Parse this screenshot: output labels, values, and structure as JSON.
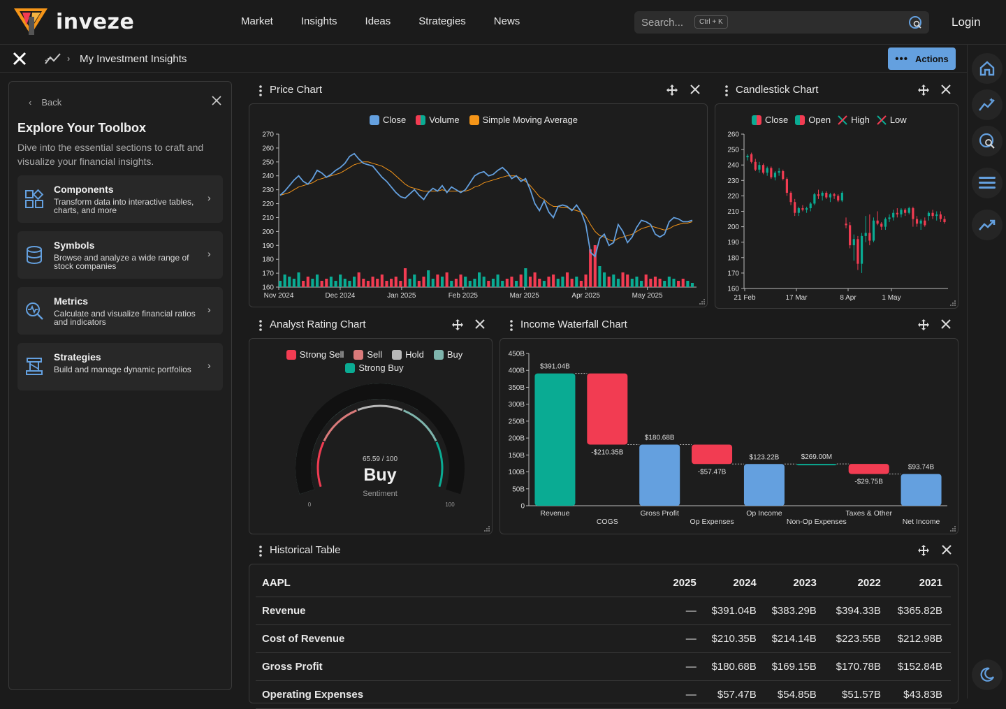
{
  "brand": {
    "name": "inveze"
  },
  "nav": [
    "Market",
    "Insights",
    "Ideas",
    "Strategies",
    "News"
  ],
  "search": {
    "placeholder": "Search...",
    "shortcut": "Ctrl + K"
  },
  "login_label": "Login",
  "breadcrumb": {
    "page": "My Investment Insights"
  },
  "actions_label": "Actions",
  "toolbox": {
    "back_label": "Back",
    "title": "Explore Your Toolbox",
    "description": "Dive into the essential sections to craft and visualize your financial insights.",
    "items": [
      {
        "title": "Components",
        "desc": "Transform data into interactive tables, charts, and more",
        "icon": "components-icon"
      },
      {
        "title": "Symbols",
        "desc": "Browse and analyze a wide range of stock companies",
        "icon": "database-icon"
      },
      {
        "title": "Metrics",
        "desc": "Calculate and visualize financial ratios and indicators",
        "icon": "metrics-search-icon"
      },
      {
        "title": "Strategies",
        "desc": "Build and manage dynamic portfolios",
        "icon": "strategy-icon"
      }
    ]
  },
  "colors": {
    "accent": "#64a0df",
    "up": "#0aab93",
    "down": "#f23c52",
    "sma": "#f59518",
    "teal_gauge": "#7fb5ad"
  },
  "price_chart": {
    "title": "Price Chart",
    "legend": [
      "Close",
      "Volume",
      "Simple Moving Average"
    ]
  },
  "candle_chart": {
    "title": "Candlestick Chart",
    "legend": [
      "Close",
      "Open",
      "High",
      "Low"
    ]
  },
  "rating_chart": {
    "title": "Analyst Rating Chart",
    "legend": [
      "Strong Sell",
      "Sell",
      "Hold",
      "Buy",
      "Strong Buy"
    ],
    "score_text": "65.59 / 100",
    "rating": "Buy",
    "caption": "Sentiment",
    "min_label": "0",
    "max_label": "100"
  },
  "waterfall": {
    "title": "Income Waterfall Chart"
  },
  "hist_table": {
    "title": "Historical Table",
    "headers": [
      "AAPL",
      "2025",
      "2024",
      "2023",
      "2022",
      "2021"
    ],
    "rows": [
      [
        "Revenue",
        "—",
        "$391.04B",
        "$383.29B",
        "$394.33B",
        "$365.82B"
      ],
      [
        "Cost of Revenue",
        "—",
        "$210.35B",
        "$214.14B",
        "$223.55B",
        "$212.98B"
      ],
      [
        "Gross Profit",
        "—",
        "$180.68B",
        "$169.15B",
        "$170.78B",
        "$152.84B"
      ],
      [
        "Operating Expenses",
        "—",
        "$57.47B",
        "$54.85B",
        "$51.57B",
        "$43.83B"
      ]
    ]
  },
  "chart_data": [
    {
      "type": "line",
      "ylim": [
        160,
        270
      ],
      "yticks": [
        270,
        260,
        250,
        240,
        230,
        220,
        210,
        200,
        190,
        180,
        170,
        160
      ],
      "xticks": [
        "Nov 2024",
        "Dec 2024",
        "Jan 2025",
        "Feb 2025",
        "Mar 2025",
        "Apr 2025",
        "May 2025"
      ],
      "series": [
        {
          "name": "Close",
          "values": [
            226,
            229,
            233,
            237,
            240,
            236,
            234,
            238,
            244,
            242,
            239,
            241,
            244,
            246,
            249,
            254,
            256,
            252,
            249,
            248,
            247,
            243,
            239,
            236,
            232,
            228,
            225,
            224,
            227,
            230,
            226,
            223,
            228,
            231,
            229,
            233,
            228,
            232,
            230,
            228,
            230,
            235,
            240,
            242,
            243,
            240,
            241,
            244,
            246,
            243,
            238,
            240,
            236,
            238,
            230,
            220,
            215,
            222,
            214,
            210,
            218,
            219,
            218,
            215,
            219,
            214,
            205,
            185,
            182,
            195,
            198,
            190,
            192,
            205,
            200,
            192,
            196,
            203,
            208,
            207,
            205,
            198,
            196,
            198,
            207,
            210,
            209,
            207,
            207,
            208
          ]
        },
        {
          "name": "Simple Moving Average",
          "values": [
            226,
            227,
            228,
            230,
            232,
            233,
            234,
            235,
            237,
            238,
            239,
            240,
            241,
            242,
            244,
            246,
            248,
            249,
            250,
            250,
            249,
            248,
            247,
            245,
            243,
            240,
            237,
            234,
            232,
            231,
            230,
            229,
            229,
            229,
            229,
            230,
            229,
            229,
            229,
            229,
            229,
            230,
            232,
            233,
            235,
            236,
            237,
            238,
            239,
            240,
            240,
            240,
            238,
            236,
            233,
            229,
            225,
            223,
            220,
            218,
            218,
            217,
            217,
            216,
            215,
            214,
            211,
            205,
            200,
            197,
            196,
            194,
            193,
            195,
            196,
            197,
            198,
            200,
            202,
            203,
            204,
            203,
            202,
            201,
            202,
            204,
            205,
            206,
            206,
            207
          ]
        },
        {
          "name": "Volume",
          "values": [
            0.3,
            0.6,
            0.5,
            0.4,
            0.7,
            0.3,
            0.5,
            0.4,
            0.6,
            0.3,
            0.4,
            0.5,
            0.3,
            0.6,
            0.4,
            0.3,
            0.5,
            0.7,
            0.4,
            0.3,
            0.5,
            0.4,
            0.6,
            0.3,
            0.4,
            0.5,
            0.3,
            0.9,
            0.4,
            0.6,
            0.3,
            0.5,
            0.8,
            0.4,
            0.6,
            0.5,
            0.7,
            0.3,
            0.4,
            0.6,
            0.5,
            0.3,
            0.4,
            0.7,
            0.5,
            0.3,
            0.4,
            0.6,
            0.3,
            0.4,
            0.5,
            0.3,
            0.6,
            0.9,
            0.5,
            0.7,
            0.4,
            0.3,
            0.5,
            0.6,
            0.4,
            0.5,
            0.7,
            0.4,
            0.5,
            0.3,
            0.6,
            1.8,
            2.0,
            1.0,
            0.7,
            0.5,
            0.6,
            0.4,
            0.7,
            0.6,
            0.4,
            0.5,
            0.3,
            0.6,
            0.4,
            0.5,
            0.4,
            0.3,
            0.5,
            0.4,
            0.3,
            0.4,
            0.3,
            0.2
          ]
        }
      ]
    },
    {
      "type": "candlestick",
      "ylim": [
        160,
        260
      ],
      "yticks": [
        260,
        250,
        240,
        230,
        220,
        210,
        200,
        190,
        180,
        170,
        160
      ],
      "xticks": [
        "21 Feb",
        "17 Mar",
        "8 Apr",
        "1 May"
      ],
      "ohlc": [
        [
          245,
          247,
          243,
          246
        ],
        [
          247,
          248,
          241,
          242
        ],
        [
          242,
          244,
          236,
          237
        ],
        [
          237,
          242,
          235,
          240
        ],
        [
          240,
          241,
          234,
          235
        ],
        [
          235,
          239,
          233,
          238
        ],
        [
          238,
          239,
          231,
          232
        ],
        [
          232,
          236,
          230,
          235
        ],
        [
          235,
          238,
          233,
          236
        ],
        [
          236,
          237,
          230,
          231
        ],
        [
          231,
          232,
          220,
          222
        ],
        [
          222,
          223,
          214,
          216
        ],
        [
          216,
          218,
          207,
          209
        ],
        [
          209,
          213,
          207,
          212
        ],
        [
          212,
          214,
          210,
          211
        ],
        [
          211,
          213,
          209,
          212
        ],
        [
          212,
          216,
          210,
          215
        ],
        [
          215,
          222,
          214,
          221
        ],
        [
          221,
          224,
          218,
          220
        ],
        [
          220,
          223,
          217,
          222
        ],
        [
          222,
          223,
          218,
          219
        ],
        [
          219,
          222,
          216,
          221
        ],
        [
          221,
          222,
          218,
          220
        ],
        [
          220,
          221,
          216,
          217
        ],
        [
          217,
          223,
          216,
          222
        ],
        [
          202,
          206,
          199,
          201
        ],
        [
          201,
          203,
          186,
          188
        ],
        [
          188,
          195,
          178,
          192
        ],
        [
          192,
          194,
          172,
          176
        ],
        [
          176,
          196,
          170,
          194
        ],
        [
          194,
          207,
          190,
          196
        ],
        [
          196,
          208,
          188,
          191
        ],
        [
          191,
          206,
          190,
          204
        ],
        [
          204,
          210,
          201,
          202
        ],
        [
          202,
          203,
          198,
          200
        ],
        [
          200,
          206,
          198,
          205
        ],
        [
          205,
          208,
          203,
          206
        ],
        [
          206,
          211,
          204,
          209
        ],
        [
          209,
          212,
          206,
          208
        ],
        [
          208,
          212,
          206,
          211
        ],
        [
          211,
          212,
          207,
          209
        ],
        [
          209,
          213,
          208,
          212
        ],
        [
          212,
          213,
          200,
          205
        ],
        [
          205,
          207,
          200,
          202
        ],
        [
          202,
          205,
          198,
          204
        ],
        [
          204,
          206,
          200,
          201
        ],
        [
          207,
          210,
          204,
          209
        ],
        [
          209,
          211,
          205,
          207
        ],
        [
          207,
          210,
          204,
          208
        ],
        [
          208,
          210,
          203,
          205
        ],
        [
          205,
          207,
          202,
          203
        ]
      ]
    },
    {
      "type": "gauge",
      "value": 65.59,
      "range": [
        0,
        100
      ]
    },
    {
      "type": "waterfall",
      "ylim": [
        0,
        450
      ],
      "yticks": [
        "450B",
        "400B",
        "350B",
        "300B",
        "250B",
        "200B",
        "150B",
        "100B",
        "50B",
        "0"
      ],
      "categories": [
        "Revenue",
        "COGS",
        "Gross Profit",
        "Op Expenses",
        "Op Income",
        "Non-Op Expenses",
        "Taxes & Other",
        "Net Income"
      ],
      "values": [
        391.04,
        -210.35,
        180.68,
        -57.47,
        123.22,
        0.269,
        -29.75,
        93.74
      ],
      "labels": [
        "$391.04B",
        "-$210.35B",
        "$180.68B",
        "-$57.47B",
        "$123.22B",
        "$269.00M",
        "-$29.75B",
        "$93.74B"
      ],
      "kinds": [
        "total",
        "down",
        "total",
        "down",
        "total",
        "up",
        "down",
        "total"
      ]
    }
  ]
}
